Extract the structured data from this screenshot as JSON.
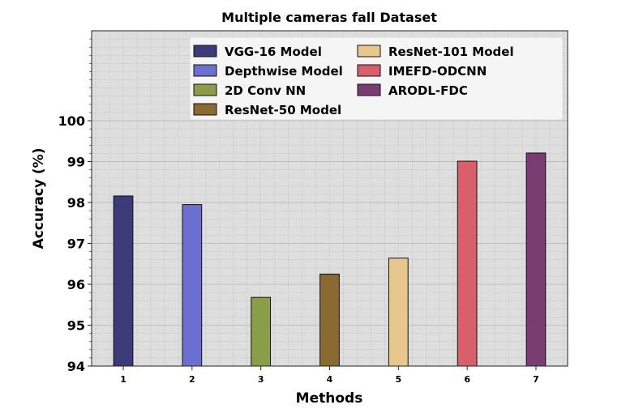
{
  "chart_data": {
    "type": "bar",
    "title": "Multiple cameras fall Dataset",
    "xlabel": "Methods",
    "ylabel": "Accuracy (%)",
    "categories": [
      "1",
      "2",
      "3",
      "4",
      "5",
      "6",
      "7"
    ],
    "series": [
      {
        "name": "VGG-16 Model",
        "x": 1,
        "value": 98.16,
        "color": "#3b3b7a"
      },
      {
        "name": "Depthwise Model",
        "x": 2,
        "value": 97.95,
        "color": "#6b6fd0"
      },
      {
        "name": "2D Conv NN",
        "x": 3,
        "value": 95.68,
        "color": "#8a9d4a"
      },
      {
        "name": "ResNet-50 Model",
        "x": 4,
        "value": 96.25,
        "color": "#8a6a30"
      },
      {
        "name": "ResNet-101 Model",
        "x": 5,
        "value": 96.64,
        "color": "#e6c88e"
      },
      {
        "name": "IMEFD-ODCNN",
        "x": 6,
        "value": 99.01,
        "color": "#d95f6a"
      },
      {
        "name": "ARODL-FDC",
        "x": 7,
        "value": 99.21,
        "color": "#7a3d72"
      }
    ],
    "yticks": [
      94,
      95,
      96,
      97,
      98,
      99,
      100
    ],
    "ylim": [
      94,
      102.2
    ],
    "xlim": [
      0.54,
      7.46
    ],
    "grid": true,
    "legend_position": "top-right"
  }
}
